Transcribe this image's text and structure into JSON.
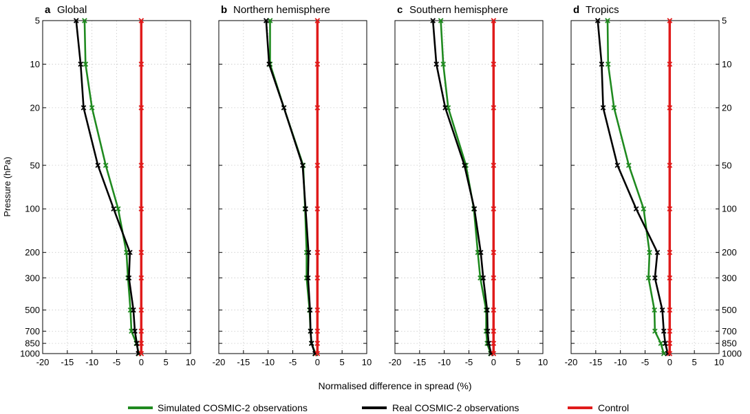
{
  "figure": {
    "xlabel": "Normalised difference in spread (%)",
    "ylabel": "Pressure (hPa)",
    "legend": [
      {
        "label": "Simulated COSMIC-2 observations",
        "color": "#1f8a1f"
      },
      {
        "label": "Real COSMIC-2 observations",
        "color": "#000000"
      },
      {
        "label": "Control",
        "color": "#e01b1b"
      }
    ]
  },
  "chart_data": [
    {
      "type": "line",
      "panel_letter": "a",
      "title": "Global",
      "xlabel": "Normalised difference in spread (%)",
      "ylabel": "Pressure (hPa)",
      "xlim": [
        -20,
        10
      ],
      "ylim": [
        1000,
        5
      ],
      "yscale": "log",
      "grid": true,
      "legend_position": "bottom",
      "xticks": [
        -20,
        -15,
        -10,
        -5,
        0,
        5,
        10
      ],
      "yticks": [
        5,
        10,
        20,
        50,
        100,
        200,
        300,
        500,
        700,
        850,
        1000
      ],
      "y": [
        5,
        10,
        20,
        50,
        100,
        200,
        300,
        500,
        700,
        850,
        1000
      ],
      "series": [
        {
          "name": "Simulated COSMIC-2 observations",
          "color": "#1f8a1f",
          "x": [
            -11.5,
            -11.3,
            -10.0,
            -7.2,
            -4.7,
            -3.0,
            -2.7,
            -2.2,
            -2.0,
            -1.0,
            -0.5
          ]
        },
        {
          "name": "Real COSMIC-2 observations",
          "color": "#000000",
          "x": [
            -13.2,
            -12.3,
            -11.7,
            -8.8,
            -5.6,
            -2.3,
            -2.5,
            -1.6,
            -1.3,
            -0.9,
            -0.6
          ]
        },
        {
          "name": "Control",
          "color": "#e01b1b",
          "x": [
            0,
            0,
            0,
            0,
            0,
            0,
            0,
            0,
            0,
            0,
            0
          ]
        }
      ]
    },
    {
      "type": "line",
      "panel_letter": "b",
      "title": "Northern hemisphere",
      "xlabel": "Normalised difference in spread (%)",
      "ylabel": "",
      "xlim": [
        -20,
        10
      ],
      "ylim": [
        1000,
        5
      ],
      "yscale": "log",
      "grid": true,
      "xticks": [
        -20,
        -15,
        -10,
        -5,
        0,
        5,
        10
      ],
      "yticks": [
        5,
        10,
        20,
        50,
        100,
        200,
        300,
        500,
        700,
        850,
        1000
      ],
      "y": [
        5,
        10,
        20,
        50,
        100,
        200,
        300,
        500,
        700,
        850,
        1000
      ],
      "series": [
        {
          "name": "Simulated COSMIC-2 observations",
          "color": "#1f8a1f",
          "x": [
            -9.6,
            -9.6,
            -6.8,
            -2.9,
            -2.5,
            -2.2,
            -2.2,
            -1.6,
            -1.4,
            -1.2,
            -0.4
          ]
        },
        {
          "name": "Real COSMIC-2 observations",
          "color": "#000000",
          "x": [
            -10.4,
            -9.8,
            -6.8,
            -3.0,
            -2.4,
            -1.8,
            -1.9,
            -1.5,
            -1.4,
            -1.2,
            -0.5
          ]
        },
        {
          "name": "Control",
          "color": "#e01b1b",
          "x": [
            0,
            0,
            0,
            0,
            0,
            0,
            0,
            0,
            0,
            0,
            0
          ]
        }
      ]
    },
    {
      "type": "line",
      "panel_letter": "c",
      "title": "Southern hemisphere",
      "xlabel": "Normalised difference in spread (%)",
      "ylabel": "",
      "xlim": [
        -20,
        10
      ],
      "ylim": [
        1000,
        5
      ],
      "yscale": "log",
      "grid": true,
      "xticks": [
        -20,
        -15,
        -10,
        -5,
        0,
        5,
        10
      ],
      "yticks": [
        5,
        10,
        20,
        50,
        100,
        200,
        300,
        500,
        700,
        850,
        1000
      ],
      "y": [
        5,
        10,
        20,
        50,
        100,
        200,
        300,
        500,
        700,
        850,
        1000
      ],
      "series": [
        {
          "name": "Simulated COSMIC-2 observations",
          "color": "#1f8a1f",
          "x": [
            -10.7,
            -10.2,
            -9.2,
            -5.6,
            -4.0,
            -3.2,
            -2.7,
            -1.5,
            -1.5,
            -1.3,
            -0.6
          ]
        },
        {
          "name": "Real COSMIC-2 observations",
          "color": "#000000",
          "x": [
            -12.3,
            -11.6,
            -9.8,
            -5.9,
            -3.9,
            -2.6,
            -2.1,
            -1.3,
            -1.2,
            -1.0,
            -0.5
          ]
        },
        {
          "name": "Control",
          "color": "#e01b1b",
          "x": [
            0,
            0,
            0,
            0,
            0,
            0,
            0,
            0,
            0,
            0,
            0
          ]
        }
      ]
    },
    {
      "type": "line",
      "panel_letter": "d",
      "title": "Tropics",
      "xlabel": "Normalised difference in spread (%)",
      "ylabel": "",
      "xlim": [
        -20,
        10
      ],
      "ylim": [
        1000,
        5
      ],
      "yscale": "log",
      "grid": true,
      "xticks": [
        -20,
        -15,
        -10,
        -5,
        0,
        5,
        10
      ],
      "yticks": [
        5,
        10,
        20,
        50,
        100,
        200,
        300,
        500,
        700,
        850,
        1000
      ],
      "y": [
        5,
        10,
        20,
        50,
        100,
        200,
        300,
        500,
        700,
        850,
        1000
      ],
      "series": [
        {
          "name": "Simulated COSMIC-2 observations",
          "color": "#1f8a1f",
          "x": [
            -12.6,
            -12.5,
            -11.3,
            -8.3,
            -5.3,
            -4.1,
            -4.3,
            -3.1,
            -3.0,
            -1.8,
            -1.2
          ]
        },
        {
          "name": "Real COSMIC-2 observations",
          "color": "#000000",
          "x": [
            -14.6,
            -13.8,
            -13.5,
            -10.6,
            -6.8,
            -2.5,
            -3.0,
            -1.5,
            -1.2,
            -0.9,
            -0.4
          ]
        },
        {
          "name": "Control",
          "color": "#e01b1b",
          "x": [
            0,
            0,
            0,
            0,
            0,
            0,
            0,
            0,
            0,
            0,
            0
          ]
        }
      ]
    }
  ]
}
